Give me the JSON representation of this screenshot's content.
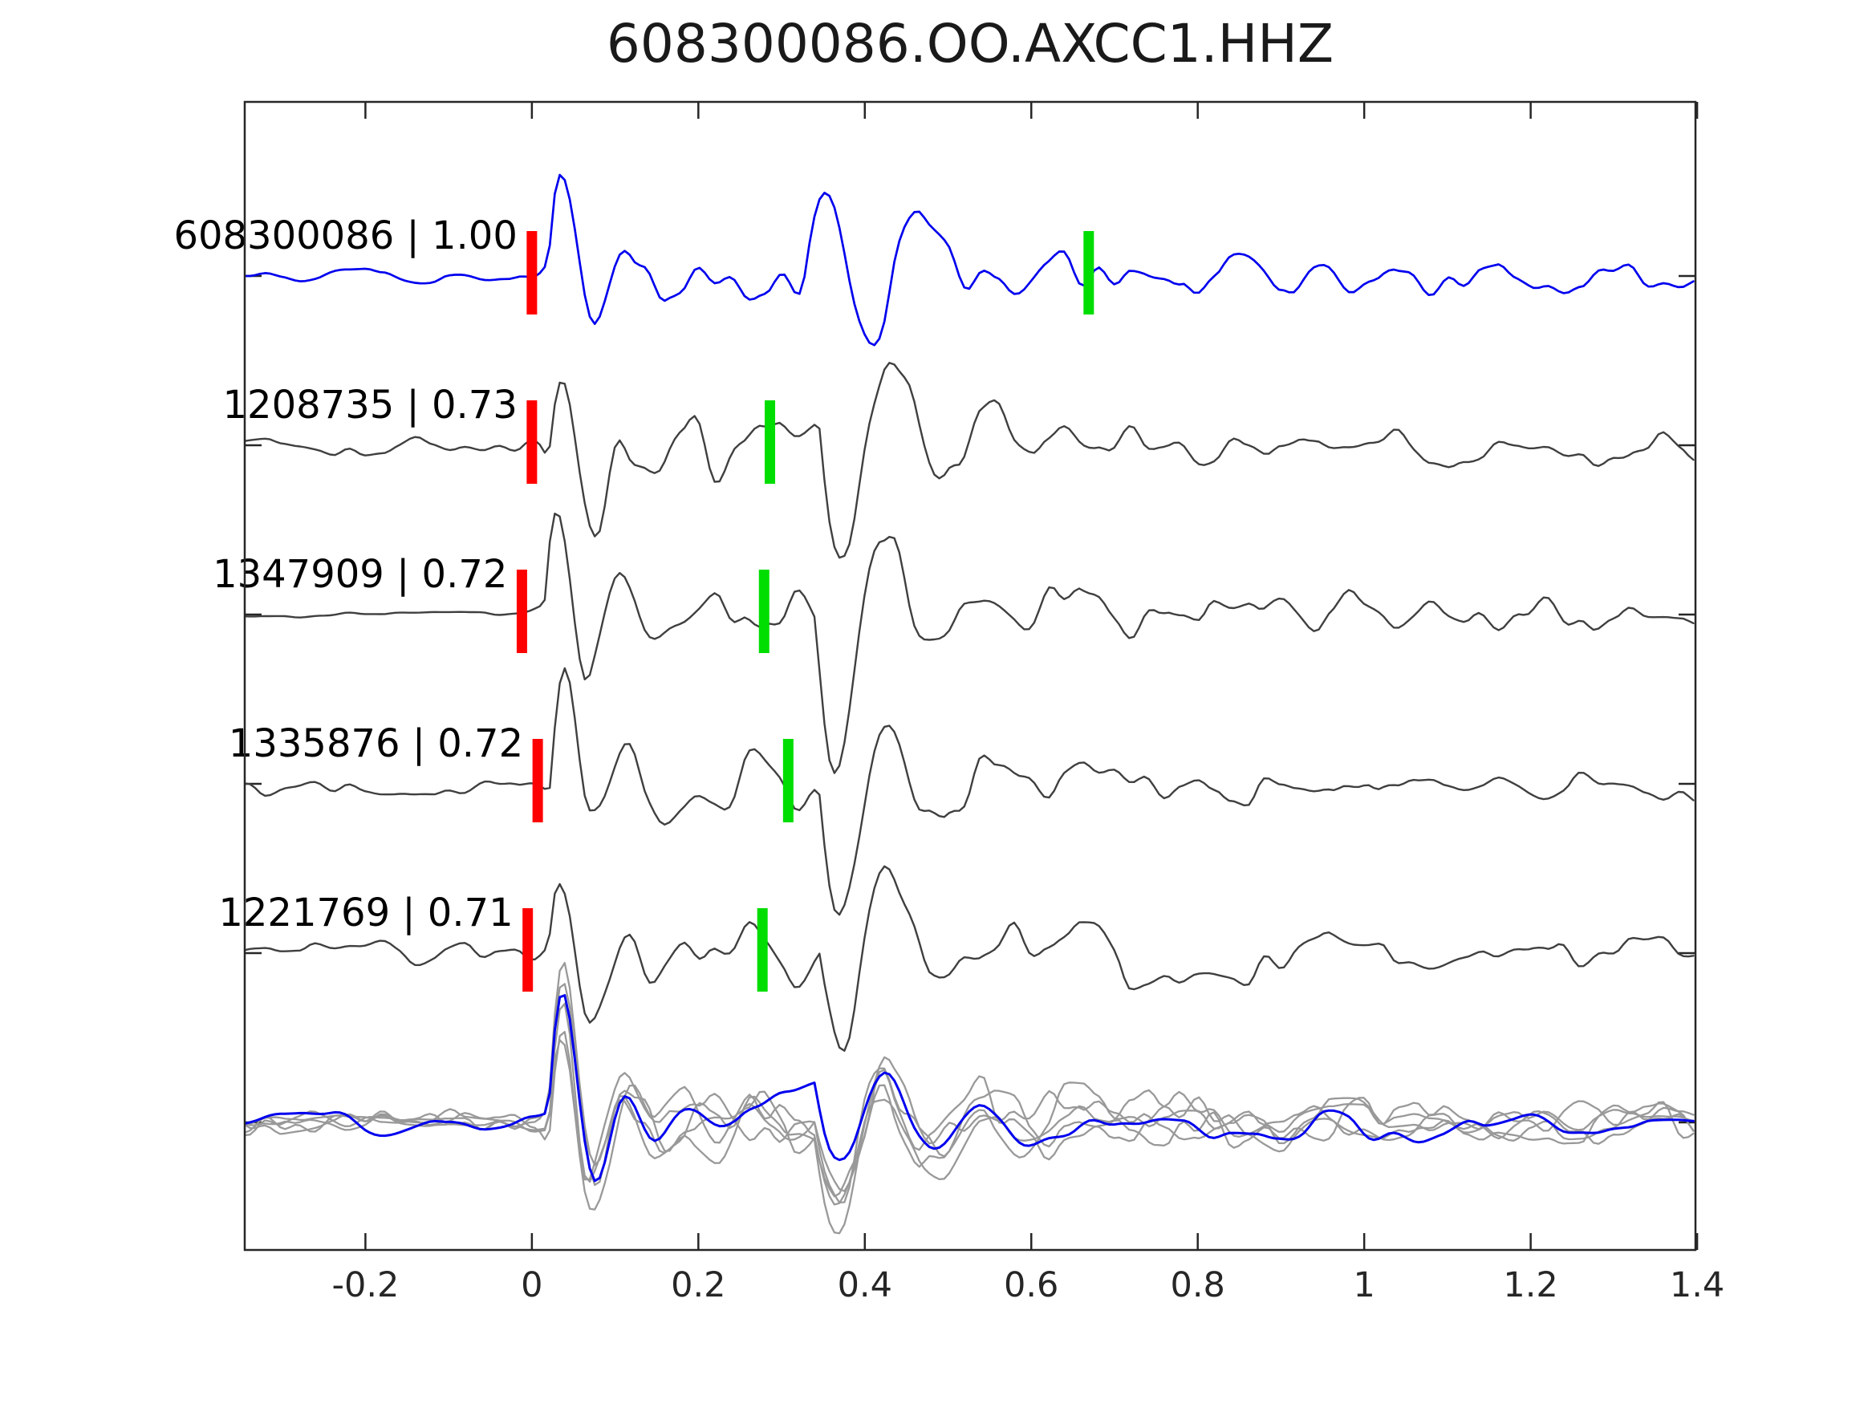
{
  "chart": {
    "title": "608300086.OO.AXCC1.HHZ"
  },
  "chart_data": {
    "type": "line",
    "title": "608300086.OO.AXCC1.HHZ",
    "xlabel": "",
    "ylabel": "",
    "grid": false,
    "legend": "none",
    "x_axis": {
      "min": -0.345,
      "max": 1.398,
      "ticks": [
        -0.2,
        0,
        0.2,
        0.4,
        0.6,
        0.8,
        1,
        1.2,
        1.4
      ],
      "tick_labels": [
        "-0.2",
        "0",
        "0.2",
        "0.4",
        "0.6",
        "0.8",
        "1",
        "1.2",
        "1.4"
      ]
    },
    "colors": {
      "template_trace": "#0000ee",
      "detection_trace": "#3f3f3f",
      "overlay_gray": "#999999",
      "overlay_blue": "#0000ee",
      "p_pick_marker": "#ff0000",
      "s_pick_marker": "#00dd00",
      "axis": "#262626",
      "text": "#000000"
    },
    "traces": [
      {
        "label": "608300086 | 1.00",
        "event_id": "608300086",
        "correlation": 1.0,
        "color_role": "template_trace",
        "p_pick": 0.0,
        "s_pick": 0.669,
        "synth": {
          "seed": 3,
          "noise_pre": 0.13,
          "coda": 0.4,
          "s_coda": 0.14,
          "p_amp": 1.55,
          "s_amp": 1.05,
          "p_t": 0.02,
          "s_t": 0.325,
          "smooth": 0
        }
      },
      {
        "label": "1208735 | 0.73",
        "event_id": "1208735",
        "correlation": 0.73,
        "color_role": "detection_trace",
        "p_pick": 0.0,
        "s_pick": 0.286,
        "synth": {
          "seed": 17,
          "noise_pre": 0.16,
          "coda": 0.42,
          "s_coda": 0.16,
          "p_amp": 1.35,
          "s_amp": -1.75,
          "p_t": 0.02,
          "s_t": 0.345,
          "smooth": 0
        }
      },
      {
        "label": "1347909 | 0.72",
        "event_id": "1347909",
        "correlation": 0.72,
        "color_role": "detection_trace",
        "p_pick": -0.012,
        "s_pick": 0.279,
        "synth": {
          "seed": 42,
          "noise_pre": 0.04,
          "coda": 0.45,
          "s_coda": 0.15,
          "p_amp": 1.6,
          "s_amp": -1.6,
          "p_t": 0.015,
          "s_t": 0.34,
          "smooth": 0
        }
      },
      {
        "label": "1335876 | 0.72",
        "event_id": "1335876",
        "correlation": 0.72,
        "color_role": "detection_trace",
        "p_pick": 0.007,
        "s_pick": 0.308,
        "synth": {
          "seed": 7,
          "noise_pre": 0.17,
          "coda": 0.42,
          "s_coda": 0.16,
          "p_amp": 1.5,
          "s_amp": -1.7,
          "p_t": 0.022,
          "s_t": 0.345,
          "smooth": 0
        }
      },
      {
        "label": "1221769 | 0.71",
        "event_id": "1221769",
        "correlation": 0.71,
        "color_role": "detection_trace",
        "p_pick": -0.005,
        "s_pick": 0.277,
        "synth": {
          "seed": 29,
          "noise_pre": 0.16,
          "coda": 0.44,
          "s_coda": 0.15,
          "p_amp": 1.45,
          "s_amp": -1.65,
          "p_t": 0.02,
          "s_t": 0.345,
          "smooth": 0
        }
      }
    ],
    "overlay": {
      "description": "all detections (gray) overlaid with template (blue), aligned at t=0",
      "gray_traces": [
        {
          "synth": {
            "seed": 101,
            "noise_pre": 0.15,
            "coda": 0.38,
            "s_coda": 0.13,
            "p_amp": 1.5,
            "s_amp": -1.05,
            "p_t": 0.02,
            "s_t": 0.34,
            "smooth": 0
          }
        },
        {
          "synth": {
            "seed": 113,
            "noise_pre": 0.16,
            "coda": 0.38,
            "s_coda": 0.13,
            "p_amp": 1.45,
            "s_amp": -1.0,
            "p_t": 0.02,
            "s_t": 0.34,
            "smooth": 0
          }
        },
        {
          "synth": {
            "seed": 127,
            "noise_pre": 0.14,
            "coda": 0.4,
            "s_coda": 0.14,
            "p_amp": 1.55,
            "s_amp": -1.1,
            "p_t": 0.02,
            "s_t": 0.34,
            "smooth": 0
          }
        },
        {
          "synth": {
            "seed": 139,
            "noise_pre": 0.16,
            "coda": 0.37,
            "s_coda": 0.13,
            "p_amp": 1.5,
            "s_amp": -0.95,
            "p_t": 0.02,
            "s_t": 0.34,
            "smooth": 0
          }
        },
        {
          "synth": {
            "seed": 151,
            "noise_pre": 0.15,
            "coda": 0.39,
            "s_coda": 0.14,
            "p_amp": 1.48,
            "s_amp": -1.05,
            "p_t": 0.02,
            "s_t": 0.34,
            "smooth": 0
          }
        }
      ],
      "blue_trace": {
        "synth": {
          "seed": 163,
          "noise_pre": 0.14,
          "coda": 0.33,
          "s_coda": 0.12,
          "p_amp": 1.5,
          "s_amp": -1.0,
          "p_t": 0.02,
          "s_t": 0.34,
          "smooth": 1
        }
      }
    }
  }
}
